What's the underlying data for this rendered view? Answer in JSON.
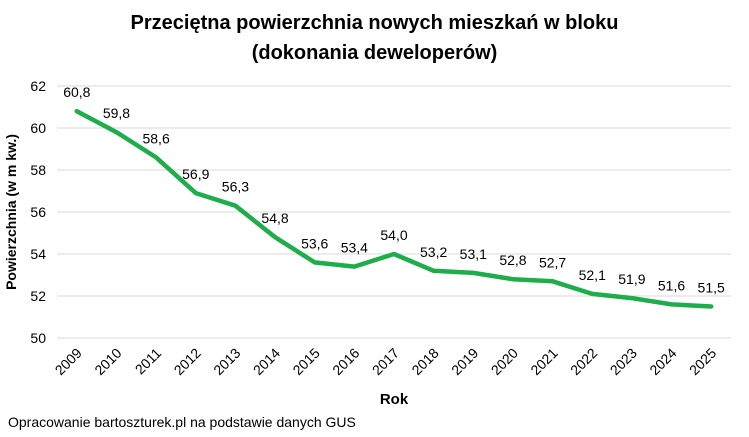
{
  "title": {
    "line1": "Przeciętna powierzchnia nowych mieszkań w bloku",
    "line2": "(dokonania deweloperów)"
  },
  "chart_data": {
    "type": "line",
    "title": "Przeciętna powierzchnia nowych mieszkań w bloku (dokonania deweloperów)",
    "categories": [
      "2009",
      "2010",
      "2011",
      "2012",
      "2013",
      "2014",
      "2015",
      "2016",
      "2017",
      "2018",
      "2019",
      "2020",
      "2021",
      "2022",
      "2023",
      "2024",
      "2025"
    ],
    "values": [
      60.8,
      59.8,
      58.6,
      56.9,
      56.3,
      54.8,
      53.6,
      53.4,
      54.0,
      53.2,
      53.1,
      52.8,
      52.7,
      52.1,
      51.9,
      51.6,
      51.5
    ],
    "xlabel": "Rok",
    "ylabel": "Powierzchnia (w m kw.)",
    "ylim": [
      50,
      62
    ],
    "ytick_step": 2,
    "yticks": [
      50,
      52,
      54,
      56,
      58,
      60,
      62
    ],
    "grid": true,
    "legend": false,
    "data_labels": true,
    "decimal_separator": ",",
    "line_color": "#1ead4b",
    "grid_color": "#d9d9d9",
    "text_color": "#000000",
    "background": "#ffffff"
  },
  "footer": {
    "source": "Opracowanie bartoszturek.pl na podstawie danych GUS"
  }
}
